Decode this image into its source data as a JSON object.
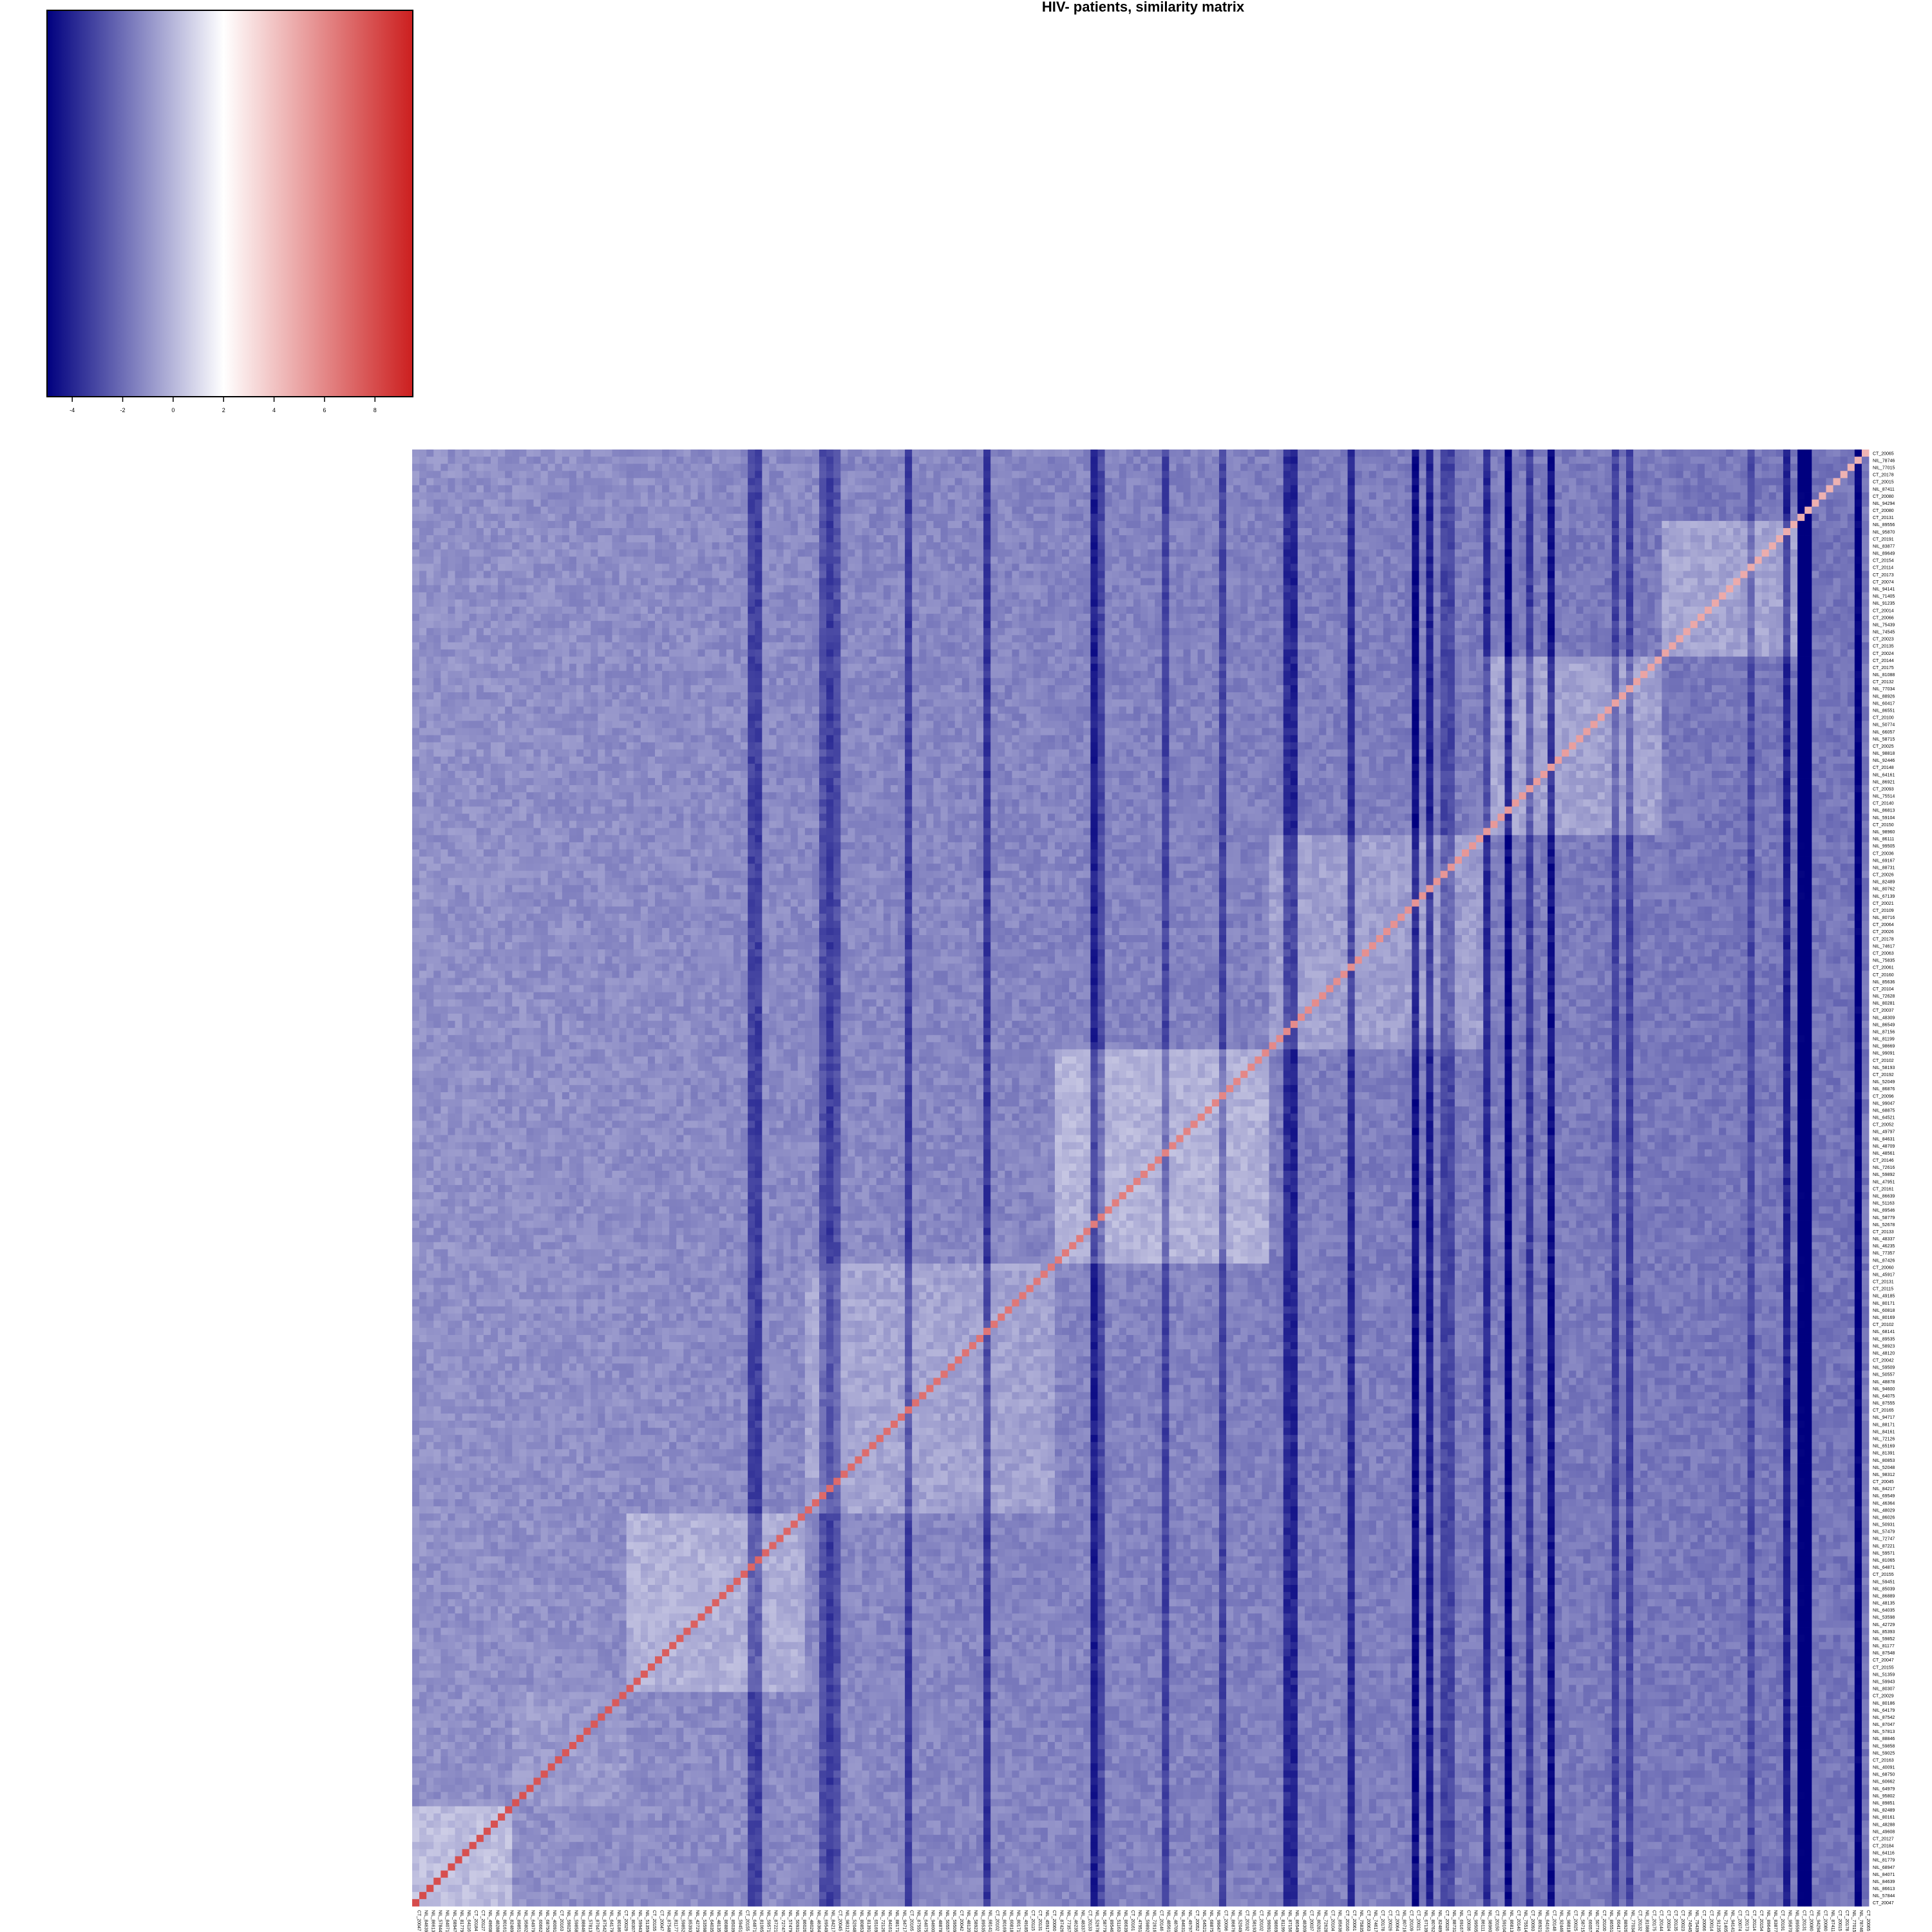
{
  "chart_data": {
    "type": "heatmap",
    "title": "HIV- patients, similarity matrix",
    "xlabel": "",
    "ylabel": "",
    "legend": "top-left",
    "color_key": {
      "ticks": [
        -4,
        -2,
        0,
        2,
        4,
        6,
        8
      ],
      "range": [
        -5,
        9.5
      ],
      "stops": [
        {
          "value": -5,
          "color": "#00007f"
        },
        {
          "value": 2,
          "color": "#ffffff"
        },
        {
          "value": 9.5,
          "color": "#cc1f1f"
        }
      ]
    },
    "diagonal_value": 8,
    "value_summary": "values mostly between -3 and 2 off the diagonal; diagonal near 8",
    "row_labels": [
      "CT_20065",
      "NIL_78746",
      "NIL_77015",
      "CT_20178",
      "CT_20015",
      "NIL_87411",
      "CT_20080",
      "NIL_94294",
      "CT_20080",
      "CT_20131",
      "NIL_89556",
      "NIL_95870",
      "CT_20191",
      "NIL_83877",
      "NIL_89649",
      "CT_20154",
      "CT_20114",
      "CT_20173",
      "CT_20074",
      "NIL_94141",
      "NIL_71405",
      "NIL_91235",
      "CT_20014",
      "CT_20066",
      "NIL_75439",
      "NIL_74545",
      "CT_20023",
      "CT_20135",
      "CT_20024",
      "CT_20144",
      "CT_20175",
      "NIL_81088",
      "CT_20132",
      "NIL_77034",
      "NIL_88926",
      "NIL_60417",
      "NIL_86551",
      "CT_20100",
      "NIL_50774",
      "NIL_66057",
      "NIL_58715",
      "CT_20025",
      "NIL_98818",
      "NIL_92446",
      "CT_20148",
      "NIL_64161",
      "NIL_86921",
      "CT_20093",
      "NIL_75514",
      "CT_20140",
      "NIL_86813",
      "NIL_59104",
      "CT_20150",
      "NIL_98960",
      "NIL_86111",
      "NIL_99505",
      "CT_20036",
      "NIL_69167",
      "NIL_88731",
      "CT_20026",
      "NIL_82489",
      "NIL_80762",
      "NIL_67139",
      "CT_20021",
      "CT_20109",
      "NIL_80716",
      "CT_20064",
      "CT_20026",
      "CT_20178",
      "NIL_74617",
      "CT_20063",
      "NIL_75835",
      "CT_20061",
      "CT_20160",
      "NIL_85636",
      "CT_20104",
      "NIL_72628",
      "NIL_80281",
      "CT_20037",
      "NIL_48309",
      "NIL_86549",
      "NIL_87156",
      "NIL_81199",
      "NIL_98669",
      "NIL_99091",
      "CT_20102",
      "NIL_58193",
      "CT_20192",
      "NIL_52049",
      "NIL_86876",
      "CT_20096",
      "NIL_99047",
      "NIL_68875",
      "NIL_64521",
      "CT_20052",
      "NIL_49797",
      "NIL_84631",
      "NIL_48709",
      "NIL_48561",
      "CT_20146",
      "NIL_72616",
      "NIL_59892",
      "NIL_47951",
      "CT_20161",
      "NIL_86639",
      "NIL_51163",
      "NIL_89546",
      "NIL_58779",
      "NIL_52678",
      "CT_20133",
      "NIL_48337",
      "NIL_46235",
      "NIL_77357",
      "NIL_87426",
      "CT_20060",
      "NIL_45917",
      "CT_20131",
      "CT_20115",
      "NIL_49185",
      "NIL_80171",
      "NIL_60818",
      "NIL_80169",
      "CT_20102",
      "NIL_68141",
      "NIL_89535",
      "NIL_58923",
      "NIL_48120",
      "CT_20042",
      "NIL_59509",
      "NIL_50557",
      "NIL_48878",
      "NIL_94600",
      "NIL_64075",
      "NIL_87555",
      "CT_20165",
      "NIL_94717",
      "NIL_88171",
      "NIL_84161",
      "NIL_72126",
      "NIL_65169",
      "NIL_81391",
      "NIL_80853",
      "NIL_52048",
      "NIL_98312",
      "CT_20045",
      "NIL_84217",
      "NIL_69549",
      "NIL_46364",
      "NIL_48029",
      "NIL_86026",
      "NIL_50931",
      "NIL_57479",
      "NIL_72747",
      "NIL_87221",
      "NIL_59571",
      "NIL_81065",
      "NIL_64871",
      "CT_20155",
      "NIL_59451",
      "NIL_85039",
      "NIL_86889",
      "NIL_48135",
      "NIL_64035",
      "NIL_53598",
      "NIL_42729",
      "NIL_85393",
      "NIL_59852",
      "NIL_81177",
      "NIL_87548",
      "CT_20047",
      "CT_20155",
      "NIL_51359",
      "NIL_59943",
      "NIL_80307",
      "CT_20029",
      "NIL_80186",
      "NIL_64179",
      "NIL_87542",
      "NIL_87047",
      "NIL_57813",
      "NIL_88846",
      "NIL_59858",
      "NIL_59025",
      "CT_20163",
      "NIL_40091",
      "NIL_68750",
      "NIL_60662",
      "NIL_64979",
      "NIL_95802",
      "NIL_89851",
      "NIL_82489",
      "NIL_80161",
      "NIL_48288",
      "NIL_49608",
      "CT_20127",
      "CT_20184",
      "NIL_64116",
      "NIL_81779",
      "NIL_68947",
      "NIL_84071",
      "NIL_84639",
      "NIL_86613",
      "NIL_57844",
      "CT_20047"
    ],
    "column_labels_note": "columns carry the same sample labels as rows, printed vertically beneath the matrix",
    "column_labels": [
      "CT_20047",
      "NIL_84639",
      "NIL_86613",
      "NIL_57844",
      "NIL_84071",
      "NIL_68947",
      "NIL_81779",
      "NIL_64116",
      "CT_20184",
      "CT_20127",
      "NIL_49608",
      "NIL_48288",
      "NIL_80161",
      "NIL_82489",
      "NIL_89851",
      "NIL_95802",
      "NIL_64979",
      "NIL_60662",
      "NIL_68750",
      "NIL_40091",
      "CT_20163",
      "NIL_59025",
      "NIL_59858",
      "NIL_88846",
      "NIL_57813",
      "NIL_87047",
      "NIL_87542",
      "NIL_64179",
      "NIL_80186",
      "CT_20029",
      "NIL_80307",
      "NIL_59943",
      "NIL_51359",
      "CT_20155",
      "CT_20047",
      "NIL_87548",
      "NIL_81177",
      "NIL_59852",
      "NIL_85393",
      "NIL_42729",
      "NIL_53598",
      "NIL_64035",
      "NIL_48135",
      "NIL_86889",
      "NIL_85039",
      "NIL_59451",
      "CT_20155",
      "NIL_64871",
      "NIL_81065",
      "NIL_59571",
      "NIL_87221",
      "NIL_72747",
      "NIL_57479",
      "NIL_50931",
      "NIL_86026",
      "NIL_48029",
      "NIL_46364",
      "NIL_69549",
      "NIL_84217",
      "CT_20045",
      "NIL_98312",
      "NIL_52048",
      "NIL_80853",
      "NIL_81391",
      "NIL_65169",
      "NIL_72126",
      "NIL_84161",
      "NIL_88171",
      "NIL_94717",
      "CT_20165",
      "NIL_87555",
      "NIL_64075",
      "NIL_94600",
      "NIL_48878",
      "NIL_50557",
      "NIL_59509",
      "CT_20042",
      "NIL_48120",
      "NIL_58923",
      "NIL_89535",
      "NIL_68141",
      "CT_20102",
      "NIL_80169",
      "NIL_60818",
      "NIL_80171",
      "NIL_49185",
      "CT_20115",
      "CT_20131",
      "NIL_45917",
      "CT_20060",
      "NIL_87426",
      "NIL_77357",
      "NIL_46235",
      "NIL_48337",
      "CT_20133",
      "NIL_52678",
      "NIL_58779",
      "NIL_89546",
      "NIL_51163",
      "NIL_86639",
      "CT_20161",
      "NIL_47951",
      "NIL_59892",
      "NIL_72616",
      "CT_20146",
      "NIL_48561",
      "NIL_48709",
      "NIL_84631",
      "NIL_49797",
      "CT_20052",
      "NIL_64521",
      "NIL_68875",
      "NIL_99047",
      "CT_20096",
      "NIL_86876",
      "NIL_52049",
      "CT_20192",
      "NIL_58193",
      "CT_20102",
      "NIL_99091",
      "NIL_98669",
      "NIL_81199",
      "NIL_87156",
      "NIL_86549",
      "NIL_48309",
      "CT_20037",
      "NIL_80281",
      "NIL_72628",
      "CT_20104",
      "NIL_85636",
      "CT_20160",
      "CT_20061",
      "NIL_75835",
      "CT_20063",
      "NIL_74617",
      "CT_20178",
      "CT_20026",
      "CT_20064",
      "NIL_80716",
      "CT_20109",
      "CT_20021",
      "NIL_67139",
      "NIL_80762",
      "NIL_82489",
      "CT_20026",
      "NIL_88731",
      "NIL_69167",
      "CT_20036",
      "NIL_99505",
      "NIL_86111",
      "NIL_98960",
      "CT_20150",
      "NIL_59104",
      "NIL_86813",
      "CT_20140",
      "NIL_75514",
      "CT_20093",
      "NIL_86921",
      "NIL_64161",
      "CT_20148",
      "NIL_92446",
      "NIL_98818",
      "CT_20025",
      "NIL_58715",
      "NIL_66057",
      "NIL_50774",
      "CT_20100",
      "NIL_86551",
      "NIL_60417",
      "NIL_88926",
      "NIL_77034",
      "CT_20132",
      "NIL_81088",
      "CT_20175",
      "CT_20144",
      "CT_20024",
      "CT_20135",
      "CT_20023",
      "NIL_74545",
      "NIL_75439",
      "CT_20066",
      "CT_20014",
      "NIL_91235",
      "NIL_71405",
      "NIL_94141",
      "CT_20074",
      "CT_20173",
      "CT_20114",
      "CT_20154",
      "NIL_89649",
      "NIL_83877",
      "CT_20191",
      "NIL_95870",
      "NIL_89556",
      "CT_20131",
      "CT_20080",
      "NIL_94294",
      "CT_20080",
      "NIL_87411",
      "CT_20015",
      "CT_20178",
      "NIL_77015",
      "NIL_78746",
      "CT_20065"
    ],
    "blocks": [
      {
        "start": 0,
        "end": 14,
        "level": 0.55
      },
      {
        "start": 14,
        "end": 30,
        "level": 0.15
      },
      {
        "start": 30,
        "end": 55,
        "level": 0.45
      },
      {
        "start": 55,
        "end": 90,
        "level": 0.35
      },
      {
        "start": 90,
        "end": 120,
        "level": 0.6
      },
      {
        "start": 120,
        "end": 150,
        "level": 0.4
      },
      {
        "start": 150,
        "end": 175,
        "level": 0.5
      },
      {
        "start": 175,
        "end": 194,
        "level": 0.55
      }
    ],
    "dark_columns_note": "several columns on the right side are strongly negative (dark blue)"
  }
}
